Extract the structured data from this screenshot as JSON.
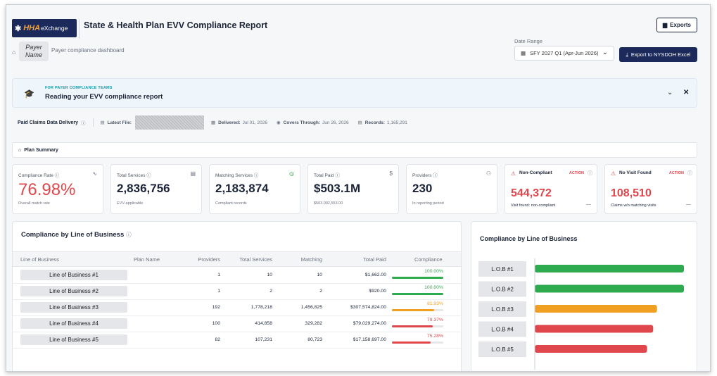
{
  "header": {
    "logo_hha": "HHA",
    "logo_ex": "eXchange",
    "title": "State & Health Plan EVV Compliance Report",
    "exports_label": "Exports",
    "payer_name": "Payer Name",
    "subtitle": "Payer compliance dashboard",
    "date_range_label": "Date Range",
    "date_range_value": "SFY 2027 Q1 (Apr-Jun 2026)",
    "export_ny_label": "Export to NYSDOH Excel"
  },
  "banner": {
    "kicker": "FOR PAYER COMPLIANCE TEAMS",
    "title": "Reading your EVV compliance report"
  },
  "delivery": {
    "label": "Paid Claims Data Delivery",
    "latest_file_label": "Latest File:",
    "delivered_label": "Delivered:",
    "delivered_value": "Jul 01, 2026",
    "covers_label": "Covers Through:",
    "covers_value": "Jun 26, 2026",
    "records_label": "Records:",
    "records_value": "1,165,291"
  },
  "plan_summary": {
    "label": "Plan Summary"
  },
  "kpis": {
    "compliance": {
      "label": "Compliance Rate",
      "value": "76.98%",
      "sub": "Overall match rate"
    },
    "services": {
      "label": "Total Services",
      "value": "2,836,756",
      "sub": "EVV-applicable"
    },
    "matching": {
      "label": "Matching Services",
      "value": "2,183,874",
      "sub": "Compliant records"
    },
    "paid": {
      "label": "Total Paid",
      "value": "$503.1M",
      "sub": "$503,092,553.00"
    },
    "providers": {
      "label": "Providers",
      "value": "230",
      "sub": "In reporting period"
    },
    "noncompliant": {
      "label": "Non-Compliant",
      "action": "ACTION",
      "value": "544,372",
      "sub": "Visit found: non-compliant",
      "dash": "—"
    },
    "novisit": {
      "label": "No Visit Found",
      "action": "ACTION",
      "value": "108,510",
      "sub": "Claims w/o matching visits",
      "dash": "—"
    }
  },
  "table": {
    "title": "Compliance by Line of Business",
    "columns": [
      "Line of Business",
      "Plan Name",
      "Providers",
      "Total Services",
      "Matching",
      "Total Paid",
      "Compliance"
    ],
    "rows": [
      {
        "lob": "Line of Business #1",
        "providers": "1",
        "services": "10",
        "matching": "10",
        "paid": "$1,662.00",
        "compliance": "100.00%",
        "level": 1.0,
        "color": "#2eaa4f"
      },
      {
        "lob": "Line of Business #2",
        "providers": "1",
        "services": "2",
        "matching": "2",
        "paid": "$920.00",
        "compliance": "100.00%",
        "level": 1.0,
        "color": "#2eaa4f"
      },
      {
        "lob": "Line of Business #3",
        "providers": "192",
        "services": "1,778,218",
        "matching": "1,456,825",
        "paid": "$307,574,824.00",
        "compliance": "81.93%",
        "level": 0.8193,
        "color": "#f0a020"
      },
      {
        "lob": "Line of Business #4",
        "providers": "100",
        "services": "414,858",
        "matching": "329,282",
        "paid": "$79,029,274.00",
        "compliance": "79.37%",
        "level": 0.7937,
        "color": "#e0474c"
      },
      {
        "lob": "Line of Business #5",
        "providers": "82",
        "services": "107,231",
        "matching": "80,723",
        "paid": "$17,158,697.00",
        "compliance": "75.28%",
        "level": 0.7528,
        "color": "#e0474c"
      }
    ]
  },
  "chart_data": {
    "type": "bar",
    "title": "Compliance by Line of Business",
    "orientation": "horizontal",
    "categories": [
      "L.O.B #1",
      "L.O.B #2",
      "L.O.B #3",
      "L.O.B #4",
      "L.O.B #5"
    ],
    "values": [
      100.0,
      100.0,
      81.93,
      79.37,
      75.28
    ],
    "colors": [
      "#2eaa4f",
      "#2eaa4f",
      "#f0a020",
      "#e0474c",
      "#e0474c"
    ],
    "xlim": [
      0,
      100
    ]
  }
}
